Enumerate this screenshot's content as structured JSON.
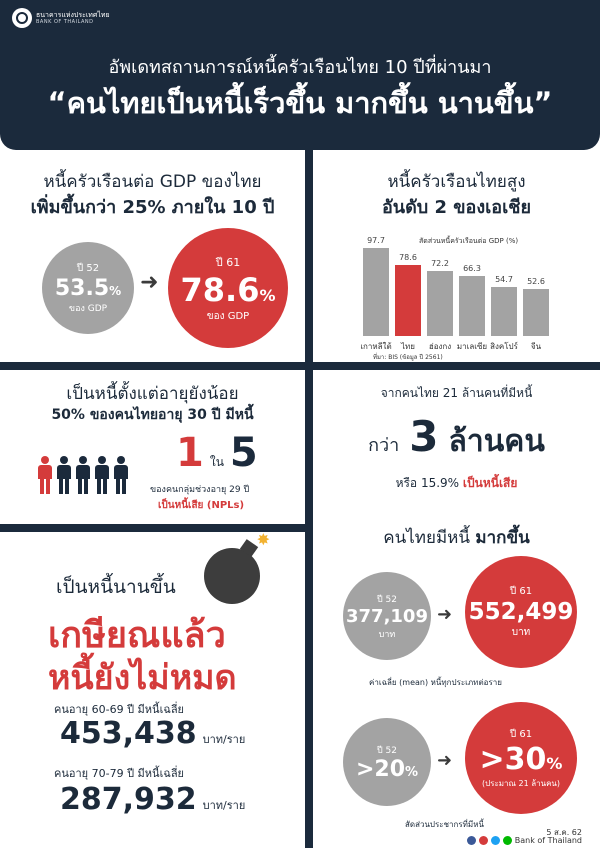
{
  "header": {
    "org_name_th": "ธนาคารแห่งประเทศไทย",
    "org_name_en": "BANK OF THAILAND",
    "title_line1": "อัพเดทสถานการณ์หนี้ครัวเรือนไทย 10 ปีที่ผ่านมา",
    "title_line2": "“คนไทยเป็นหนี้เร็วขึ้น มากขึ้น นานขึ้น”"
  },
  "gdp_panel": {
    "heading1": "หนี้ครัวเรือนต่อ GDP ของไทย",
    "heading2": "เพิ่มขึ้นกว่า 25% ภายใน 10 ปี",
    "before": {
      "year": "ปี 52",
      "value": "53.5",
      "unit": "%",
      "caption": "ของ GDP"
    },
    "after": {
      "year": "ปี 61",
      "value": "78.6",
      "unit": "%",
      "caption": "ของ GDP"
    }
  },
  "asia_panel": {
    "heading1": "หนี้ครัวเรือนไทยสูง",
    "heading2": "อันดับ 2 ของเอเชีย",
    "chart_caption": "สัดส่วนหนี้ครัวเรือนต่อ GDP (%)",
    "source": "ที่มา: BIS (ข้อมูล ปี 2561)"
  },
  "chart_data": {
    "type": "bar",
    "title": "สัดส่วนหนี้ครัวเรือนต่อ GDP (%)",
    "categories": [
      "เกาหลีใต้",
      "ไทย",
      "ฮ่องกง",
      "มาเลเซีย",
      "สิงคโปร์",
      "จีน"
    ],
    "values": [
      97.7,
      78.6,
      72.2,
      66.3,
      54.7,
      52.6
    ],
    "value_labels": [
      "97.7",
      "78.6",
      "72.2",
      "66.3",
      "54.7",
      "52.6"
    ],
    "highlight_index": 1,
    "colors": {
      "default": "#a3a3a3",
      "highlight": "#d43b3b"
    },
    "ylim": [
      0,
      100
    ]
  },
  "young_panel": {
    "heading1": "เป็นหนี้ตั้งแต่อายุยังน้อย",
    "heading2": "50% ของคนไทยอายุ 30 ปี มีหนี้",
    "ratio_num": "1",
    "ratio_word": "ใน",
    "ratio_den": "5",
    "caption1": "ของคนกลุ่มช่วงอายุ 29 ปี",
    "caption2": "เป็นหนี้เสีย (NPLs)"
  },
  "npl_panel": {
    "line1": "จากคนไทย 21 ล้านคนที่มีหนี้",
    "prefix": "กว่า",
    "big_number": "3",
    "suffix": "ล้านคน",
    "line3_prefix": "หรือ 15.9%",
    "line3_red": "เป็นหนี้เสีย"
  },
  "long_panel": {
    "heading": "เป็นหนี้นานขึ้น",
    "red_line1": "เกษียณแล้ว",
    "red_line2": "หนี้ยังไม่หมด",
    "group1_label": "คนอายุ 60-69 ปี มีหนี้เฉลี่ย",
    "group1_value": "453,438",
    "group1_unit": "บาท/ราย",
    "group2_label": "คนอายุ 70-79 ปี มีหนี้เฉลี่ย",
    "group2_value": "287,932",
    "group2_unit": "บาท/ราย"
  },
  "more_panel": {
    "heading_plain": "คนไทยมีหนี้",
    "heading_bold": "มากขึ้น",
    "mean_before": {
      "year": "ปี 52",
      "value": "377,109",
      "unit": "บาท"
    },
    "mean_after": {
      "year": "ปี 61",
      "value": "552,499",
      "unit": "บาท"
    },
    "mean_caption": "ค่าเฉลี่ย (mean) หนี้ทุกประเภทต่อราย",
    "share_before": {
      "year": "ปี 52",
      "value": ">20",
      "unit": "%"
    },
    "share_after": {
      "year": "ปี 61",
      "value": ">30",
      "unit": "%",
      "note": "(ประมาณ 21 ล้านคน)"
    },
    "share_caption": "สัดส่วนประชากรที่มีหนี้"
  },
  "footer": {
    "date": "5 ส.ค. 62",
    "brand": "Bank of Thailand",
    "social_icons": [
      "facebook-icon",
      "youtube-icon",
      "twitter-icon",
      "line-icon"
    ]
  }
}
